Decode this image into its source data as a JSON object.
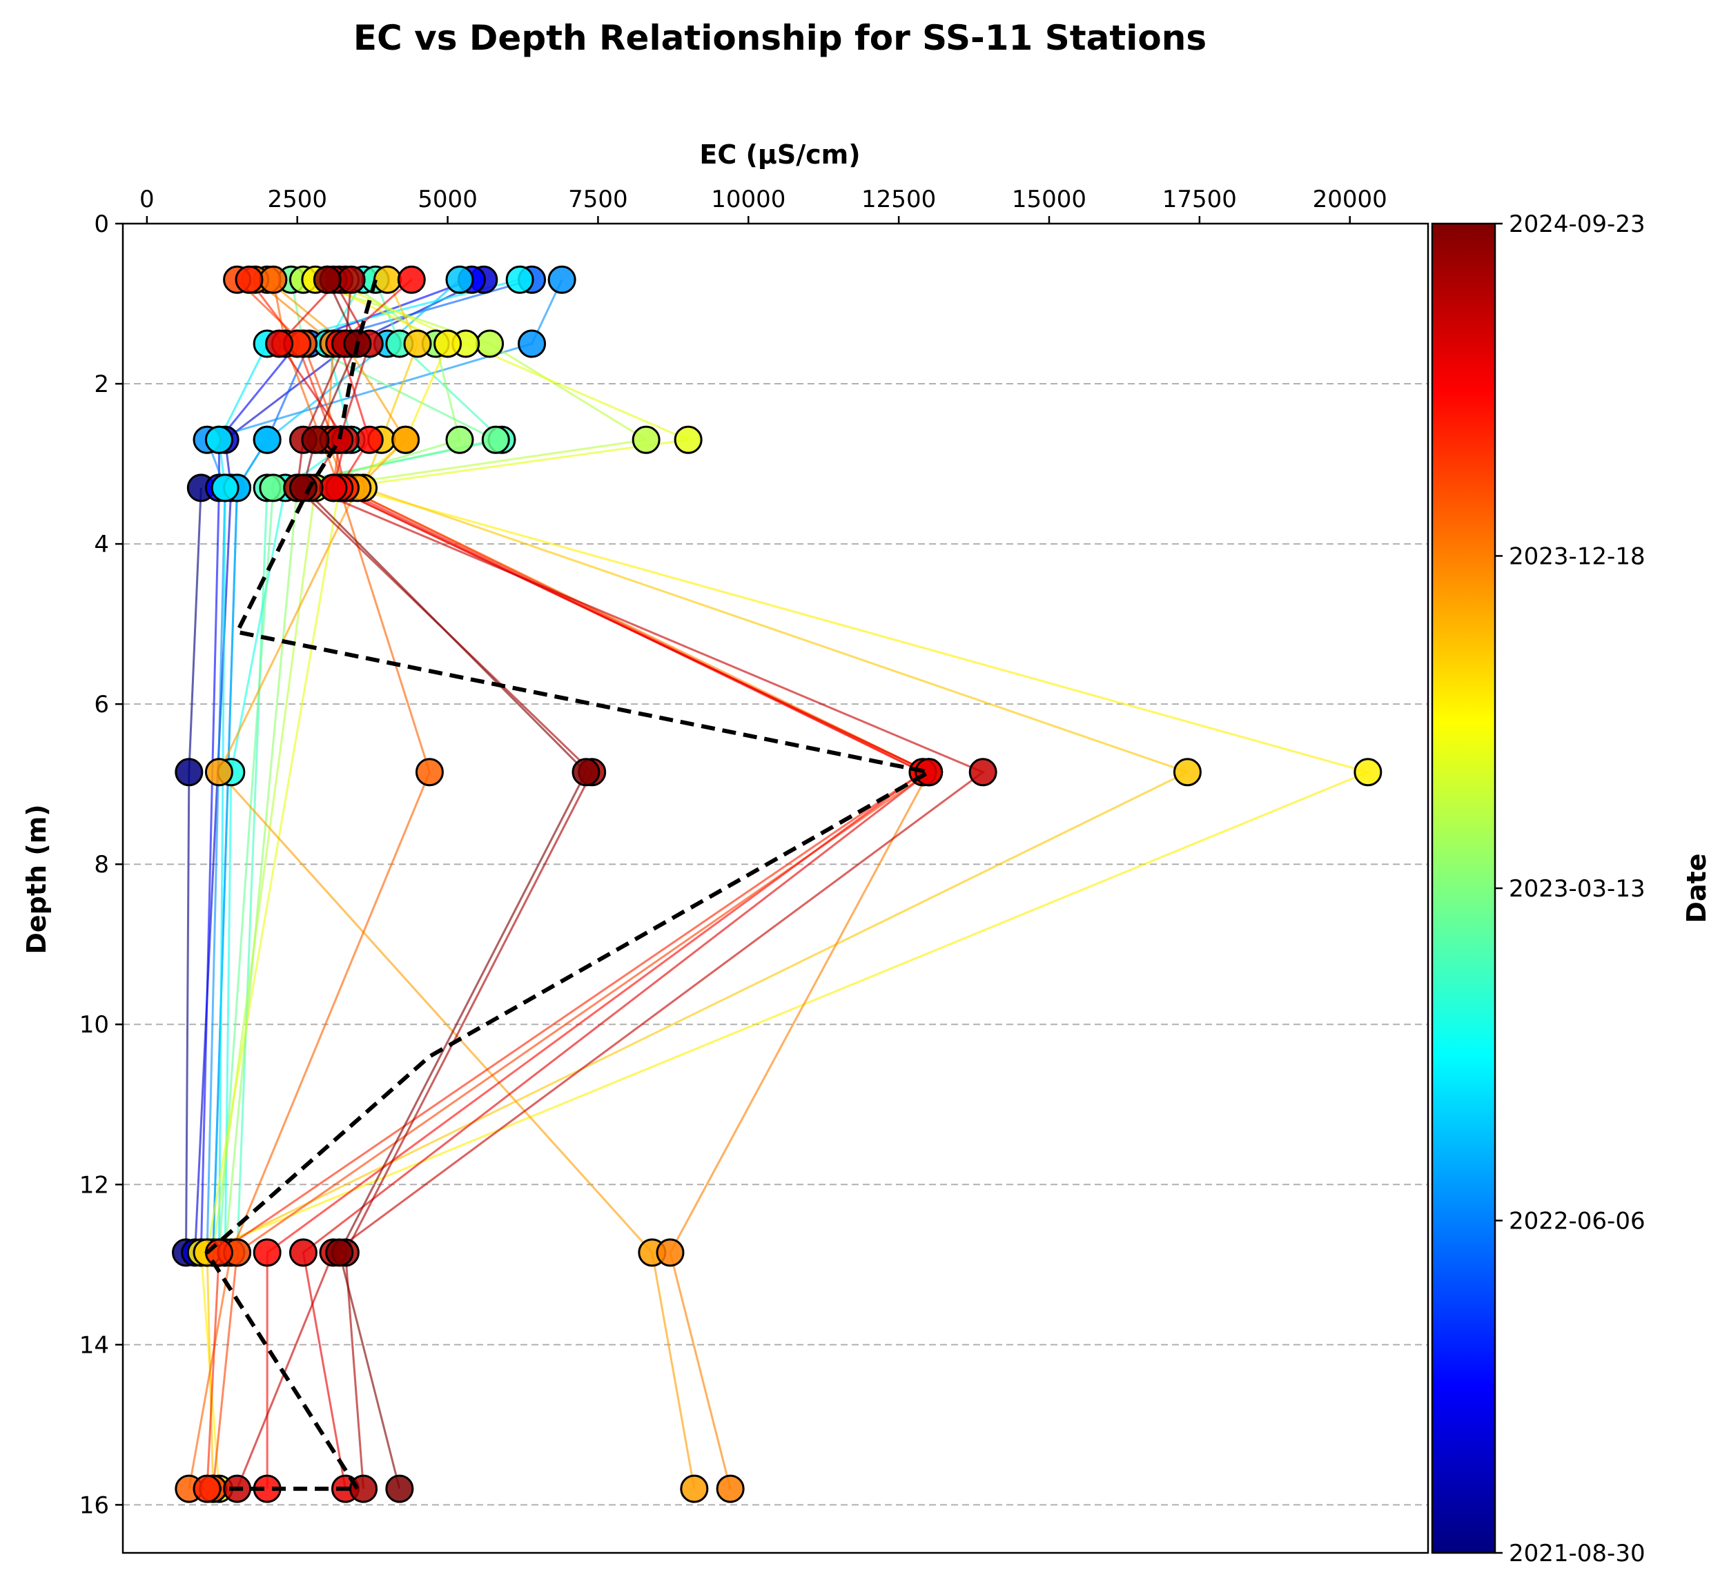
{
  "chart_data": {
    "type": "scatter",
    "title": "EC vs Depth Relationship for SS-11 Stations",
    "xlabel": "EC (µS/cm)",
    "ylabel": "Depth (m)",
    "x_axis_position": "top",
    "y_inverted": true,
    "xlim": [
      -400,
      21300
    ],
    "ylim": [
      16.6,
      0
    ],
    "xticks": [
      0,
      2500,
      5000,
      7500,
      10000,
      12500,
      15000,
      17500,
      20000
    ],
    "yticks": [
      0,
      2,
      4,
      6,
      8,
      10,
      12,
      14,
      16
    ],
    "grid": "horizontal dashed",
    "colorbar": {
      "label": "Date",
      "colormap": "jet",
      "ticks": [
        "2021-08-30",
        "2022-06-06",
        "2023-03-13",
        "2023-12-18",
        "2024-09-23"
      ],
      "stops": [
        "#00007f",
        "#0000ff",
        "#007fff",
        "#00ffff",
        "#7fff7f",
        "#ffff00",
        "#ff7f00",
        "#ff0000",
        "#7f0000"
      ]
    },
    "depths": [
      0.7,
      1.5,
      2.7,
      3.3,
      6.85,
      12.85,
      15.8
    ],
    "series": [
      {
        "t": 0.0,
        "ec": [
          null,
          null,
          null,
          900,
          700,
          650,
          null
        ]
      },
      {
        "t": 0.08,
        "ec": [
          5600,
          3400,
          1300,
          1400,
          null,
          800,
          null
        ]
      },
      {
        "t": 0.13,
        "ec": [
          5400,
          2500,
          1200,
          1200,
          null,
          900,
          null
        ]
      },
      {
        "t": 0.22,
        "ec": [
          6400,
          2700,
          2000,
          1500,
          null,
          1100,
          null
        ]
      },
      {
        "t": 0.27,
        "ec": [
          6900,
          6400,
          1000,
          1300,
          null,
          1000,
          null
        ]
      },
      {
        "t": 0.32,
        "ec": [
          5200,
          4000,
          2000,
          1500,
          null,
          1100,
          null
        ]
      },
      {
        "t": 0.36,
        "ec": [
          6200,
          2000,
          1200,
          1300,
          null,
          1200,
          null
        ]
      },
      {
        "t": 0.4,
        "ec": [
          3600,
          3000,
          3400,
          2300,
          1400,
          1300,
          null
        ]
      },
      {
        "t": 0.44,
        "ec": [
          3800,
          4200,
          5900,
          2000,
          null,
          1500,
          null
        ]
      },
      {
        "t": 0.48,
        "ec": [
          2400,
          2600,
          5800,
          2100,
          null,
          1200,
          null
        ]
      },
      {
        "t": 0.52,
        "ec": [
          3300,
          4800,
          5200,
          2500,
          null,
          1300,
          null
        ]
      },
      {
        "t": 0.56,
        "ec": [
          2600,
          5700,
          8300,
          2800,
          null,
          1100,
          null
        ]
      },
      {
        "t": 0.6,
        "ec": [
          3000,
          5300,
          9000,
          3200,
          null,
          1000,
          null
        ]
      },
      {
        "t": 0.64,
        "ec": [
          2800,
          5000,
          4300,
          3400,
          20300,
          900,
          1200
        ]
      },
      {
        "t": 0.68,
        "ec": [
          4000,
          4500,
          3900,
          3600,
          17300,
          1000,
          1100
        ]
      },
      {
        "t": 0.72,
        "ec": [
          2000,
          3300,
          4300,
          3500,
          1200,
          8400,
          9100
        ]
      },
      {
        "t": 0.75,
        "ec": [
          1800,
          3100,
          3000,
          3300,
          13000,
          8700,
          9700
        ]
      },
      {
        "t": 0.78,
        "ec": [
          2100,
          2300,
          2900,
          3200,
          4700,
          1400,
          700
        ]
      },
      {
        "t": 0.81,
        "ec": [
          1500,
          2600,
          3200,
          3100,
          13000,
          1500,
          1100
        ]
      },
      {
        "t": 0.84,
        "ec": [
          1700,
          2500,
          3100,
          3300,
          12900,
          1200,
          1000
        ]
      },
      {
        "t": 0.87,
        "ec": [
          4400,
          3200,
          3700,
          3200,
          12900,
          2000,
          2000
        ]
      },
      {
        "t": 0.9,
        "ec": [
          3200,
          2200,
          3300,
          3100,
          13000,
          2600,
          3300
        ]
      },
      {
        "t": 0.93,
        "ec": [
          3100,
          3700,
          3200,
          2700,
          13900,
          3100,
          1500
        ]
      },
      {
        "t": 0.96,
        "ec": [
          3400,
          3300,
          2600,
          2500,
          7400,
          3300,
          3600
        ]
      },
      {
        "t": 1.0,
        "ec": [
          3000,
          3500,
          2800,
          2600,
          7300,
          3200,
          4200
        ]
      }
    ],
    "mean_profile": {
      "depth": [
        0.7,
        1.5,
        2.7,
        3.3,
        5.1,
        6.85,
        10.4,
        12.85,
        15.8,
        15.8
      ],
      "ec": [
        3800,
        3500,
        3200,
        2700,
        1500,
        13000,
        4700,
        1000,
        3500,
        1200
      ]
    }
  }
}
